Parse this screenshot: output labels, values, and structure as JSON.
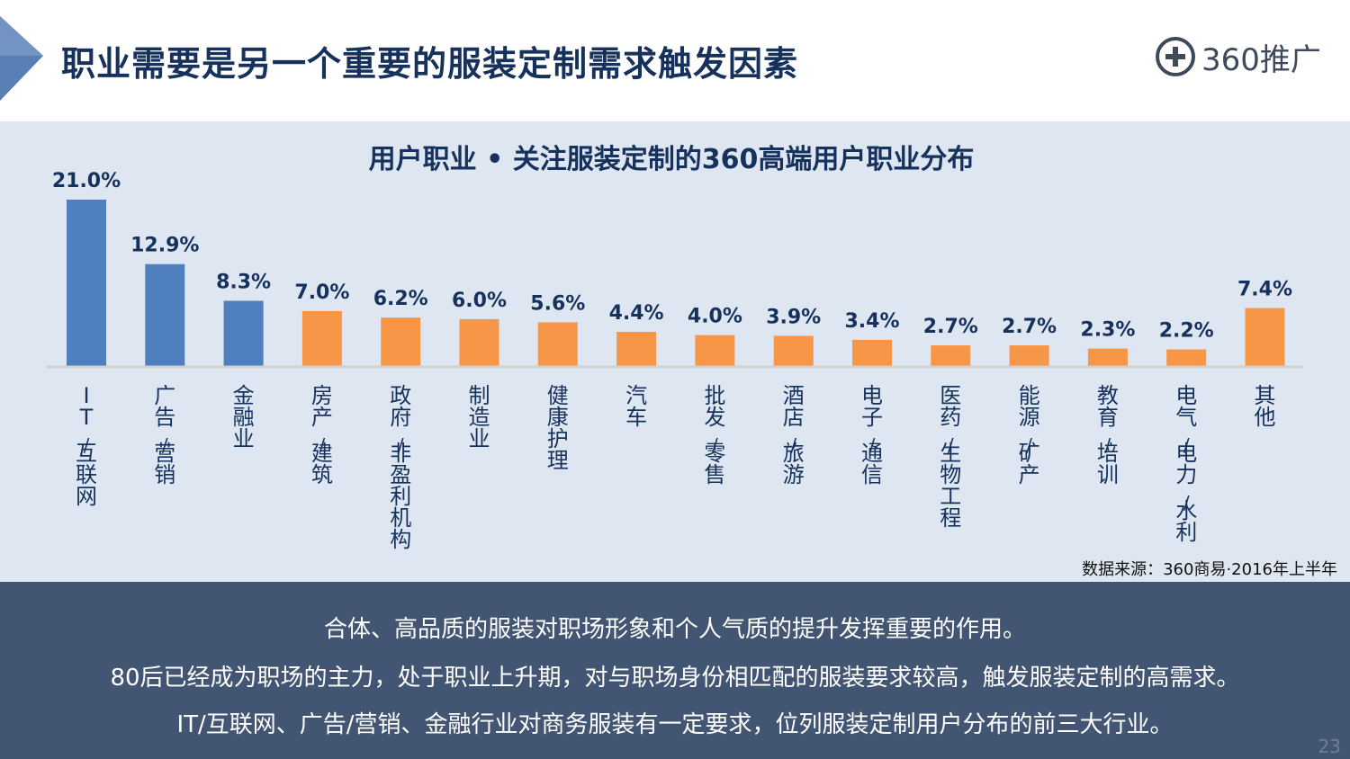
{
  "header": {
    "title": "职业需要是另一个重要的服装定制需求触发因素",
    "logo_text": "360推广"
  },
  "chart_data": {
    "type": "bar",
    "title": "用户职业 • 关注服装定制的360高端用户职业分布",
    "categories": [
      "IT/互联网",
      "广告/营销",
      "金融业",
      "房产/建筑",
      "政府/非盈利机构",
      "制造业",
      "健康护理",
      "汽车",
      "批发/零售",
      "酒店/旅游",
      "电子/通信",
      "医药/生物工程",
      "能源/矿产",
      "教育/培训",
      "电气/电力/水利",
      "其他"
    ],
    "values": [
      21.0,
      12.9,
      8.3,
      7.0,
      6.2,
      6.0,
      5.6,
      4.4,
      4.0,
      3.9,
      3.4,
      2.7,
      2.7,
      2.3,
      2.2,
      7.4
    ],
    "value_labels": [
      "21.0%",
      "12.9%",
      "8.3%",
      "7.0%",
      "6.2%",
      "6.0%",
      "5.6%",
      "4.4%",
      "4.0%",
      "3.9%",
      "3.4%",
      "2.7%",
      "2.7%",
      "2.3%",
      "2.2%",
      "7.4%"
    ],
    "highlight_count": 3,
    "colors": {
      "highlight": "#4f7fbe",
      "normal": "#f79646",
      "axis": "#d9d9d9"
    },
    "ylim": [
      0,
      21.0
    ]
  },
  "source_note": "数据来源：360商易·2016年上半年",
  "footer": {
    "lines": [
      "合体、高品质的服装对职场形象和个人气质的提升发挥重要的作用。",
      "80后已经成为职场的主力，处于职业上升期，对与职场身份相匹配的服装要求较高，触发服装定制的高需求。",
      "IT/互联网、广告/营销、金融行业对商务服装有一定要求，位列服装定制用户分布的前三大行业。"
    ]
  },
  "page_number": "23"
}
